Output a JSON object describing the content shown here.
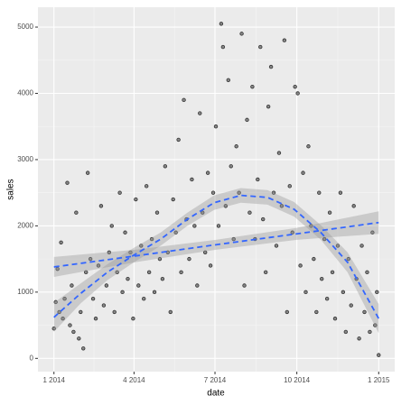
{
  "chart_data": {
    "type": "scatter",
    "x_label": "date",
    "y_label": "sales",
    "xlim": [
      -18,
      383
    ],
    "ylim": [
      -200,
      5300
    ],
    "xticks": [
      {
        "value": 0,
        "label": "1 2014"
      },
      {
        "value": 90,
        "label": "4 2014"
      },
      {
        "value": 181,
        "label": "7 2014"
      },
      {
        "value": 273,
        "label": "10 2014"
      },
      {
        "value": 365,
        "label": "1 2015"
      }
    ],
    "yticks": [
      0,
      1000,
      2000,
      3000,
      4000,
      5000
    ],
    "grid": true,
    "color": "#333333",
    "x": [
      0,
      2,
      4,
      6,
      8,
      10,
      12,
      15,
      18,
      20,
      22,
      25,
      28,
      30,
      33,
      36,
      38,
      41,
      44,
      47,
      50,
      53,
      56,
      59,
      62,
      65,
      68,
      71,
      74,
      77,
      80,
      83,
      86,
      89,
      92,
      95,
      98,
      101,
      104,
      107,
      110,
      113,
      116,
      119,
      122,
      125,
      128,
      131,
      134,
      137,
      140,
      143,
      146,
      149,
      152,
      155,
      158,
      161,
      164,
      167,
      170,
      173,
      176,
      179,
      182,
      185,
      188,
      190,
      193,
      196,
      199,
      202,
      205,
      208,
      211,
      214,
      217,
      220,
      223,
      226,
      229,
      232,
      235,
      238,
      241,
      244,
      247,
      250,
      253,
      256,
      259,
      262,
      265,
      268,
      271,
      274,
      277,
      280,
      283,
      286,
      289,
      292,
      295,
      298,
      301,
      304,
      307,
      310,
      313,
      316,
      319,
      322,
      325,
      328,
      331,
      334,
      337,
      340,
      343,
      346,
      349,
      352,
      355,
      358,
      361,
      363,
      365
    ],
    "values": [
      450,
      850,
      1350,
      700,
      1750,
      600,
      900,
      2650,
      500,
      1100,
      400,
      2200,
      300,
      700,
      150,
      1300,
      2800,
      1500,
      900,
      600,
      1400,
      2300,
      800,
      1100,
      1600,
      2000,
      700,
      1300,
      2500,
      1000,
      1900,
      1200,
      1600,
      600,
      2400,
      1100,
      1700,
      900,
      2600,
      1300,
      1800,
      1000,
      2200,
      1500,
      1200,
      2900,
      1600,
      700,
      2400,
      1900,
      3300,
      1300,
      3900,
      2100,
      1500,
      2700,
      2000,
      1100,
      3700,
      2200,
      1600,
      2800,
      1400,
      2500,
      3500,
      2000,
      5050,
      4700,
      2300,
      4200,
      2900,
      1800,
      3200,
      2500,
      4900,
      1100,
      3600,
      2200,
      4100,
      1800,
      2700,
      4700,
      2100,
      1300,
      3800,
      4400,
      2500,
      1700,
      3100,
      2300,
      4800,
      700,
      2600,
      1900,
      4100,
      4000,
      1400,
      2800,
      1000,
      3200,
      2000,
      1500,
      700,
      2500,
      1200,
      1800,
      900,
      2200,
      1300,
      600,
      1700,
      2500,
      1000,
      400,
      1500,
      800,
      2300,
      1200,
      300,
      1700,
      700,
      1300,
      400,
      1900,
      500,
      1000,
      50
    ],
    "lines": [
      {
        "color": "#3366ff",
        "x": [
          0,
          91,
          182,
          273,
          365
        ],
        "values": [
          1380,
          1545,
          1715,
          1880,
          2050
        ],
        "lower": [
          1230,
          1450,
          1640,
          1790,
          1880
        ],
        "upper": [
          1530,
          1640,
          1790,
          1970,
          2220
        ]
      },
      {
        "color": "#3366ff",
        "x": [
          0,
          30,
          60,
          90,
          120,
          150,
          180,
          210,
          240,
          270,
          300,
          330,
          365
        ],
        "values": [
          620,
          980,
          1300,
          1560,
          1800,
          2100,
          2350,
          2460,
          2430,
          2250,
          1900,
          1450,
          600
        ],
        "lower": [
          400,
          830,
          1180,
          1450,
          1700,
          2000,
          2240,
          2350,
          2320,
          2140,
          1790,
          1300,
          380
        ],
        "upper": [
          840,
          1130,
          1420,
          1670,
          1900,
          2200,
          2460,
          2570,
          2540,
          2360,
          2010,
          1600,
          820
        ]
      }
    ]
  }
}
